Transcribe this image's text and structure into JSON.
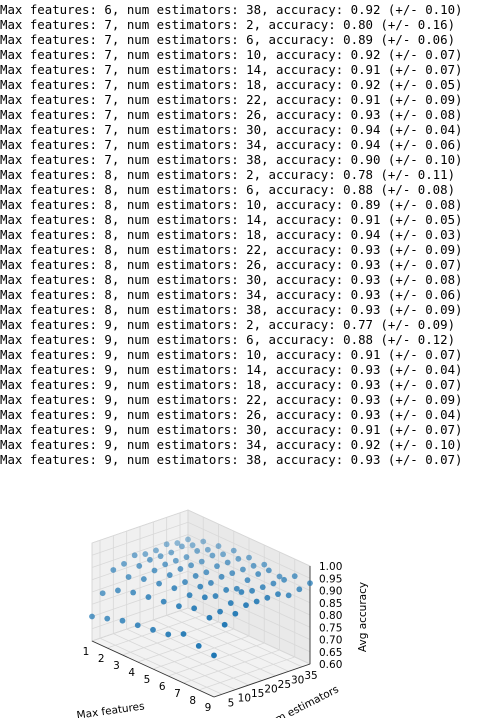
{
  "log_lines": [
    "Max features: 6, num estimators: 38, accuracy: 0.92 (+/- 0.10)",
    "Max features: 7, num estimators: 2, accuracy: 0.80 (+/- 0.16)",
    "Max features: 7, num estimators: 6, accuracy: 0.89 (+/- 0.06)",
    "Max features: 7, num estimators: 10, accuracy: 0.92 (+/- 0.07)",
    "Max features: 7, num estimators: 14, accuracy: 0.91 (+/- 0.07)",
    "Max features: 7, num estimators: 18, accuracy: 0.92 (+/- 0.05)",
    "Max features: 7, num estimators: 22, accuracy: 0.91 (+/- 0.09)",
    "Max features: 7, num estimators: 26, accuracy: 0.93 (+/- 0.08)",
    "Max features: 7, num estimators: 30, accuracy: 0.94 (+/- 0.04)",
    "Max features: 7, num estimators: 34, accuracy: 0.94 (+/- 0.06)",
    "Max features: 7, num estimators: 38, accuracy: 0.90 (+/- 0.10)",
    "Max features: 8, num estimators: 2, accuracy: 0.78 (+/- 0.11)",
    "Max features: 8, num estimators: 6, accuracy: 0.88 (+/- 0.08)",
    "Max features: 8, num estimators: 10, accuracy: 0.89 (+/- 0.08)",
    "Max features: 8, num estimators: 14, accuracy: 0.91 (+/- 0.05)",
    "Max features: 8, num estimators: 18, accuracy: 0.94 (+/- 0.03)",
    "Max features: 8, num estimators: 22, accuracy: 0.93 (+/- 0.09)",
    "Max features: 8, num estimators: 26, accuracy: 0.93 (+/- 0.07)",
    "Max features: 8, num estimators: 30, accuracy: 0.93 (+/- 0.08)",
    "Max features: 8, num estimators: 34, accuracy: 0.93 (+/- 0.06)",
    "Max features: 8, num estimators: 38, accuracy: 0.93 (+/- 0.09)",
    "Max features: 9, num estimators: 2, accuracy: 0.77 (+/- 0.09)",
    "Max features: 9, num estimators: 6, accuracy: 0.88 (+/- 0.12)",
    "Max features: 9, num estimators: 10, accuracy: 0.91 (+/- 0.07)",
    "Max features: 9, num estimators: 14, accuracy: 0.93 (+/- 0.04)",
    "Max features: 9, num estimators: 18, accuracy: 0.93 (+/- 0.07)",
    "Max features: 9, num estimators: 22, accuracy: 0.93 (+/- 0.09)",
    "Max features: 9, num estimators: 26, accuracy: 0.93 (+/- 0.04)",
    "Max features: 9, num estimators: 30, accuracy: 0.91 (+/- 0.07)",
    "Max features: 9, num estimators: 34, accuracy: 0.92 (+/- 0.10)",
    "Max features: 9, num estimators: 38, accuracy: 0.93 (+/- 0.07)"
  ],
  "chart_data": {
    "type": "scatter",
    "projection": "3d",
    "xlabel": "Max features",
    "ylabel": "Num estimators",
    "zlabel": "Avg accuracy",
    "x_ticks": [
      "1",
      "2",
      "3",
      "4",
      "5",
      "6",
      "7",
      "8",
      "9"
    ],
    "y_ticks": [
      "5",
      "10",
      "15",
      "20",
      "25",
      "30",
      "35"
    ],
    "z_ticks": [
      "0.60",
      "0.65",
      "0.70",
      "0.75",
      "0.80",
      "0.85",
      "0.90",
      "0.95",
      "1.00"
    ],
    "xlim": [
      1,
      9
    ],
    "ylim": [
      2,
      38
    ],
    "zlim": [
      0.6,
      1.0
    ],
    "grid": true,
    "marker_color": "#1f77b4",
    "estimators": [
      2,
      6,
      10,
      14,
      18,
      22,
      26,
      30,
      34,
      38
    ],
    "accuracy_by_features": [
      {
        "max_features": 1,
        "values": [
          0.7,
          0.78,
          0.86,
          0.87,
          0.89,
          0.88,
          0.88,
          0.89,
          0.88,
          0.88
        ]
      },
      {
        "max_features": 2,
        "values": [
          0.72,
          0.82,
          0.86,
          0.89,
          0.9,
          0.9,
          0.9,
          0.91,
          0.9,
          0.9
        ]
      },
      {
        "max_features": 3,
        "values": [
          0.74,
          0.84,
          0.88,
          0.9,
          0.91,
          0.91,
          0.91,
          0.92,
          0.91,
          0.91
        ]
      },
      {
        "max_features": 4,
        "values": [
          0.75,
          0.85,
          0.89,
          0.91,
          0.92,
          0.92,
          0.92,
          0.93,
          0.92,
          0.92
        ]
      },
      {
        "max_features": 5,
        "values": [
          0.76,
          0.86,
          0.9,
          0.91,
          0.92,
          0.92,
          0.93,
          0.93,
          0.93,
          0.92
        ]
      },
      {
        "max_features": 6,
        "values": [
          0.77,
          0.87,
          0.9,
          0.92,
          0.92,
          0.93,
          0.93,
          0.93,
          0.93,
          0.92
        ]
      },
      {
        "max_features": 7,
        "values": [
          0.8,
          0.89,
          0.92,
          0.91,
          0.92,
          0.91,
          0.93,
          0.94,
          0.94,
          0.9
        ]
      },
      {
        "max_features": 8,
        "values": [
          0.78,
          0.88,
          0.89,
          0.91,
          0.94,
          0.93,
          0.93,
          0.93,
          0.93,
          0.93
        ]
      },
      {
        "max_features": 9,
        "values": [
          0.77,
          0.88,
          0.91,
          0.93,
          0.93,
          0.93,
          0.93,
          0.91,
          0.92,
          0.93
        ]
      }
    ]
  }
}
